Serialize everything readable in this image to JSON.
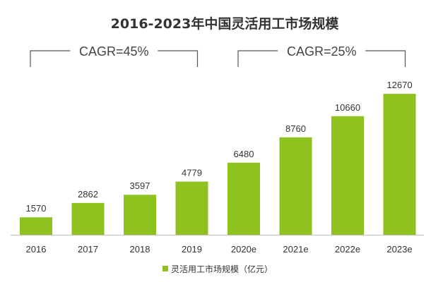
{
  "chart_data": {
    "type": "bar",
    "title": "2016-2023年中国灵活用工市场规模",
    "categories": [
      "2016",
      "2017",
      "2018",
      "2019",
      "2020e",
      "2021e",
      "2022e",
      "2023e"
    ],
    "series": [
      {
        "name": "灵活用工市场规模（亿元）",
        "values": [
          1570,
          2862,
          3597,
          4779,
          6480,
          8760,
          10660,
          12670
        ]
      }
    ],
    "value_labels": [
      "1570",
      "2862",
      "3597",
      "4779",
      "6480",
      "8760",
      "10660",
      "12670"
    ],
    "ylim": [
      0,
      13500
    ],
    "xlabel": "",
    "ylabel": "",
    "grid": false,
    "legend_position": "bottom-center",
    "bar_color": "#8DC21F",
    "annotations": [
      {
        "label": "CAGR=45%",
        "from_category": "2016",
        "to_category": "2019"
      },
      {
        "label": "CAGR=25%",
        "from_category": "2020e",
        "to_category": "2023e"
      }
    ]
  }
}
